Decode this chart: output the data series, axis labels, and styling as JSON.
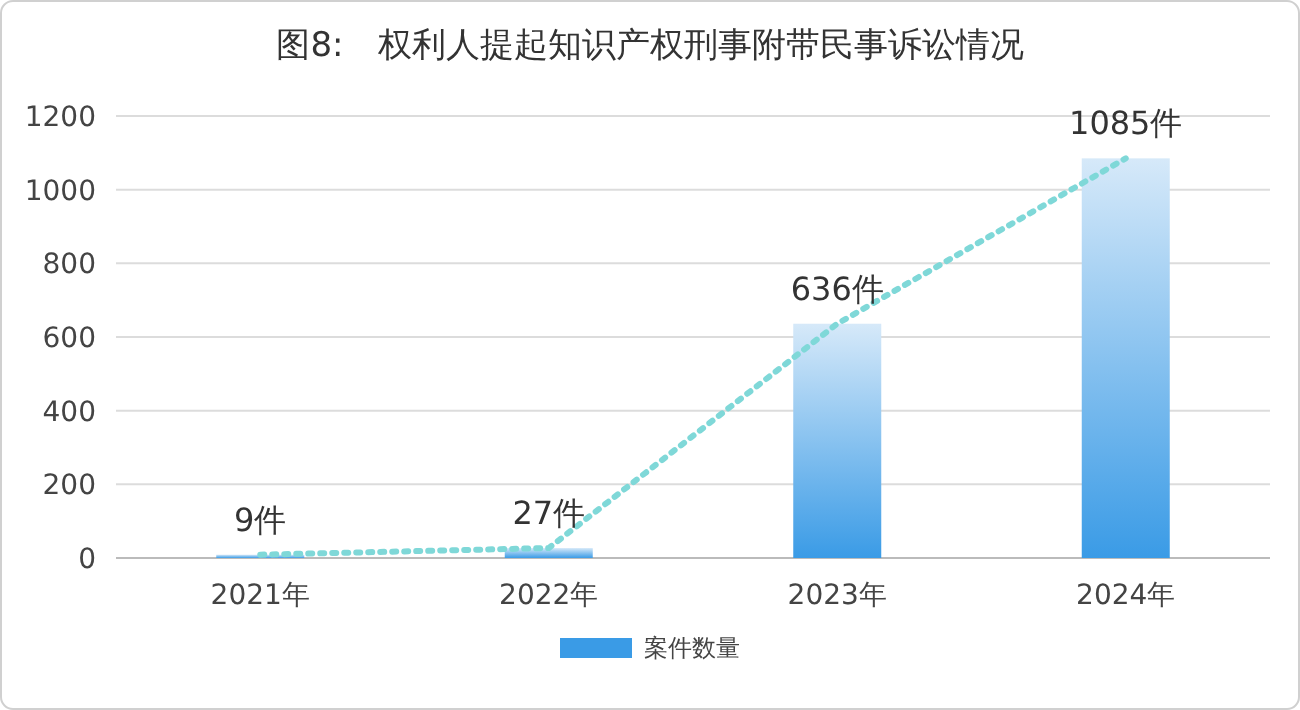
{
  "chart_data": {
    "type": "bar",
    "title": "图8:　权利人提起知识产权刑事附带民事诉讼情况",
    "categories": [
      "2021年",
      "2022年",
      "2023年",
      "2024年"
    ],
    "series": [
      {
        "name": "案件数量",
        "color": "#3a9be6",
        "values": [
          9,
          27,
          636,
          1085
        ],
        "value_labels": [
          "9件",
          "27件",
          "636件",
          "1085件"
        ]
      },
      {
        "type": "line",
        "color": "#7fd8d8",
        "line_style": "dotted",
        "values": [
          9,
          27,
          636,
          1085
        ]
      }
    ],
    "ylim": [
      0,
      1200
    ],
    "yticks": [
      0,
      200,
      400,
      600,
      800,
      1000,
      1200
    ],
    "grid": "y",
    "legend": "bottom"
  }
}
